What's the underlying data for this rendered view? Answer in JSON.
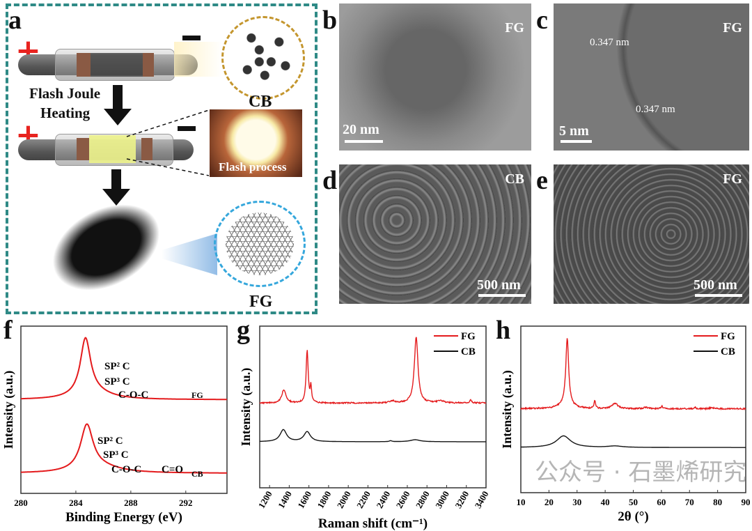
{
  "panels": {
    "a": {
      "label": "a",
      "step_label_1": "Flash Joule",
      "step_label_2": "Heating",
      "cb_label": "CB",
      "fg_label": "FG",
      "flash_photo_caption": "Flash process",
      "plus_symbol": "+",
      "colors": {
        "frame": "#2f8a86",
        "plus": "#e8231f",
        "cb_circle": "#c4962e",
        "fg_circle": "#35a7dc",
        "heated_zone": "#ecf28a"
      }
    },
    "b": {
      "label": "b",
      "sample": "FG",
      "scale_bar": "20 nm",
      "image_type": "TEM"
    },
    "c": {
      "label": "c",
      "sample": "FG",
      "scale_bar": "5 nm",
      "spacing_1": "0.347 nm",
      "spacing_2": "0.347 nm",
      "image_type": "HRTEM"
    },
    "d": {
      "label": "d",
      "sample": "CB",
      "scale_bar": "500 nm",
      "image_type": "SEM"
    },
    "e": {
      "label": "e",
      "sample": "FG",
      "scale_bar": "500 nm",
      "image_type": "SEM"
    }
  },
  "watermark": "公众号 · 石墨烯研究",
  "chart_data": [
    {
      "panel": "f",
      "type": "line",
      "xlabel": "Binding Energy (eV)",
      "ylabel": "Intensity (a.u.)",
      "xlim": [
        280,
        295
      ],
      "xticks": [
        280,
        284,
        288,
        292
      ],
      "grid": false,
      "series": [
        {
          "name": "FG",
          "color": "#e41a1c",
          "baseline": 0.55,
          "peaks": [
            {
              "center": 284.7,
              "height": 1.0,
              "width": 0.45
            },
            {
              "center": 285.3,
              "height": 0.12,
              "width": 1.5
            }
          ]
        },
        {
          "name": "CB",
          "color": "#e41a1c",
          "baseline": 0.0,
          "peaks": [
            {
              "center": 284.8,
              "height": 0.8,
              "width": 0.55
            },
            {
              "center": 285.8,
              "height": 0.1,
              "width": 1.8
            }
          ]
        }
      ],
      "annotations": [
        {
          "curve": "FG",
          "text": "SP² C"
        },
        {
          "curve": "FG",
          "text": "SP³ C"
        },
        {
          "curve": "FG",
          "text": "C-O-C"
        },
        {
          "curve": "FG",
          "text": "FG"
        },
        {
          "curve": "CB",
          "text": "SP² C"
        },
        {
          "curve": "CB",
          "text": "SP³ C"
        },
        {
          "curve": "CB",
          "text": "C-O-C"
        },
        {
          "curve": "CB",
          "text": "C=O"
        },
        {
          "curve": "CB",
          "text": "CB"
        }
      ]
    },
    {
      "panel": "g",
      "type": "line",
      "xlabel": "Raman shift (cm⁻¹)",
      "ylabel": "Intensity (a.u.)",
      "xlim": [
        1100,
        3400
      ],
      "xticks": [
        1200,
        1400,
        1600,
        1800,
        2000,
        2200,
        2400,
        2600,
        2800,
        3000,
        3200,
        3400
      ],
      "legend": "top-right",
      "grid": false,
      "series": [
        {
          "name": "FG",
          "color": "#e41a1c",
          "baseline": 0.55,
          "peaks": [
            {
              "center": 1345,
              "height": 0.2,
              "width": 25
            },
            {
              "center": 1582,
              "height": 0.8,
              "width": 12
            },
            {
              "center": 1620,
              "height": 0.25,
              "width": 8
            },
            {
              "center": 2450,
              "height": 0.03,
              "width": 30
            },
            {
              "center": 2690,
              "height": 1.0,
              "width": 22
            },
            {
              "center": 2940,
              "height": 0.03,
              "width": 40
            },
            {
              "center": 3245,
              "height": 0.05,
              "width": 12
            }
          ]
        },
        {
          "name": "CB",
          "color": "#111111",
          "baseline": 0.2,
          "peaks": [
            {
              "center": 1340,
              "height": 0.18,
              "width": 40
            },
            {
              "center": 1582,
              "height": 0.15,
              "width": 40
            },
            {
              "center": 2430,
              "height": 0.015,
              "width": 15
            },
            {
              "center": 2680,
              "height": 0.03,
              "width": 60
            }
          ]
        }
      ]
    },
    {
      "panel": "h",
      "type": "line",
      "xlabel": "2θ (°)",
      "ylabel": "Intensity (a.u.)",
      "xlim": [
        10,
        90
      ],
      "xticks": [
        10,
        20,
        30,
        40,
        50,
        60,
        70,
        80,
        90
      ],
      "legend": "top-right",
      "grid": false,
      "series": [
        {
          "name": "FG",
          "color": "#e41a1c",
          "baseline": 0.52,
          "peaks": [
            {
              "center": 26.5,
              "height": 0.98,
              "width": 0.6
            },
            {
              "center": 26.0,
              "height": 0.06,
              "width": 3
            },
            {
              "center": 36.3,
              "height": 0.11,
              "width": 0.3
            },
            {
              "center": 43.5,
              "height": 0.08,
              "width": 1.2
            },
            {
              "center": 54.5,
              "height": 0.02,
              "width": 1
            },
            {
              "center": 60.2,
              "height": 0.05,
              "width": 0.3
            },
            {
              "center": 72.0,
              "height": 0.02,
              "width": 0.3
            },
            {
              "center": 78.0,
              "height": 0.015,
              "width": 1
            }
          ]
        },
        {
          "name": "CB",
          "color": "#111111",
          "baseline": 0.18,
          "peaks": [
            {
              "center": 25.2,
              "height": 0.17,
              "width": 3
            },
            {
              "center": 43.5,
              "height": 0.02,
              "width": 3
            }
          ]
        }
      ]
    }
  ],
  "chart_labels": {
    "f": "f",
    "g": "g",
    "h": "h"
  }
}
